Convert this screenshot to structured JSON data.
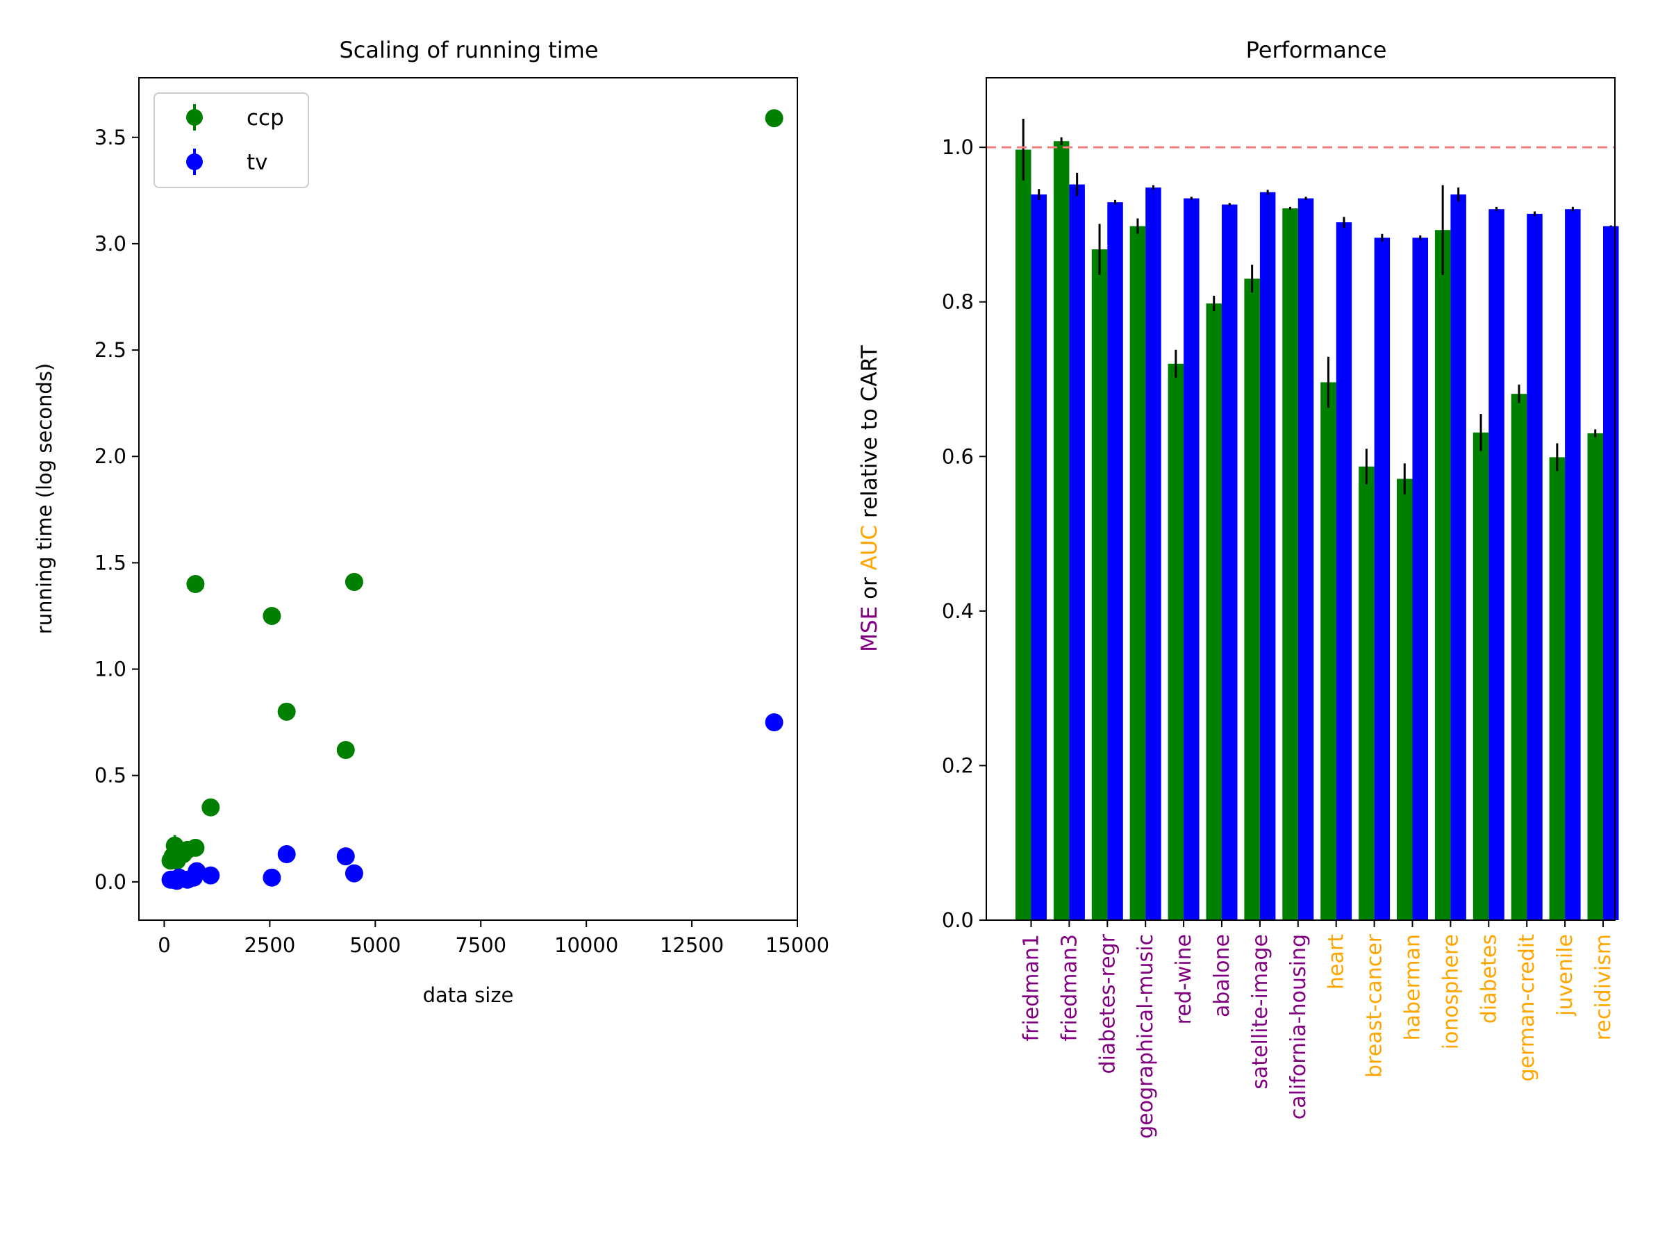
{
  "chart_data": [
    {
      "type": "scatter",
      "title": "Scaling of running time",
      "xlabel": "data size",
      "ylabel": "running time (log seconds)",
      "xlim": [
        -600,
        15000
      ],
      "ylim": [
        -0.18,
        3.78
      ],
      "xticks": [
        0,
        2500,
        5000,
        7500,
        10000,
        12500,
        15000
      ],
      "yticks": [
        0.0,
        0.5,
        1.0,
        1.5,
        2.0,
        2.5,
        3.0,
        3.5
      ],
      "xtick_labels": [
        "0",
        "2500",
        "5000",
        "7500",
        "10000",
        "12500",
        "15000"
      ],
      "ytick_labels": [
        "0.0",
        "0.5",
        "1.0",
        "1.5",
        "2.0",
        "2.5",
        "3.0",
        "3.5"
      ],
      "legend_position": "top-left",
      "series": [
        {
          "name": "ccp",
          "color": "#008000",
          "points": [
            {
              "x": 150,
              "y": 0.1,
              "err": 0.02
            },
            {
              "x": 200,
              "y": 0.12,
              "err": 0.02
            },
            {
              "x": 250,
              "y": 0.17,
              "err": 0.05
            },
            {
              "x": 300,
              "y": 0.1,
              "err": 0.02
            },
            {
              "x": 350,
              "y": 0.14,
              "err": 0.02
            },
            {
              "x": 450,
              "y": 0.13,
              "err": 0.02
            },
            {
              "x": 550,
              "y": 0.15,
              "err": 0.02
            },
            {
              "x": 740,
              "y": 0.16,
              "err": 0.01
            },
            {
              "x": 740,
              "y": 1.4,
              "err": 0.01
            },
            {
              "x": 1100,
              "y": 0.35,
              "err": 0.01
            },
            {
              "x": 2550,
              "y": 1.25,
              "err": 0.01
            },
            {
              "x": 2900,
              "y": 0.8,
              "err": 0.01
            },
            {
              "x": 4300,
              "y": 0.62,
              "err": 0.01
            },
            {
              "x": 4500,
              "y": 1.41,
              "err": 0.01
            },
            {
              "x": 14450,
              "y": 3.59,
              "err": 0.01
            }
          ]
        },
        {
          "name": "tv",
          "color": "#0000ff",
          "points": [
            {
              "x": 150,
              "y": 0.01,
              "err": 0.005
            },
            {
              "x": 200,
              "y": 0.01,
              "err": 0.005
            },
            {
              "x": 300,
              "y": 0.005,
              "err": 0.005
            },
            {
              "x": 350,
              "y": 0.02,
              "err": 0.005
            },
            {
              "x": 550,
              "y": 0.01,
              "err": 0.005
            },
            {
              "x": 700,
              "y": 0.02,
              "err": 0.005
            },
            {
              "x": 770,
              "y": 0.05,
              "err": 0.01
            },
            {
              "x": 1100,
              "y": 0.03,
              "err": 0.005
            },
            {
              "x": 2550,
              "y": 0.02,
              "err": 0.005
            },
            {
              "x": 2900,
              "y": 0.13,
              "err": 0.005
            },
            {
              "x": 4300,
              "y": 0.12,
              "err": 0.005
            },
            {
              "x": 4500,
              "y": 0.04,
              "err": 0.005
            },
            {
              "x": 14450,
              "y": 0.75,
              "err": 0.005
            }
          ]
        }
      ]
    },
    {
      "type": "bar",
      "title": "Performance",
      "ylabel_parts": [
        {
          "text": "MSE",
          "color": "#800080"
        },
        {
          "text": " or ",
          "color": "#000000"
        },
        {
          "text": "AUC",
          "color": "#ffa500"
        },
        {
          "text": "  relative to CART",
          "color": "#000000"
        }
      ],
      "ylim": [
        0,
        1.09
      ],
      "yticks": [
        0.0,
        0.2,
        0.4,
        0.6,
        0.8,
        1.0
      ],
      "ytick_labels": [
        "0.0",
        "0.2",
        "0.4",
        "0.6",
        "0.8",
        "1.0"
      ],
      "reference_line": {
        "y": 1.0,
        "color": "#f08080",
        "style": "dashed"
      },
      "categories": [
        "friedman1",
        "friedman3",
        "diabetes-regr",
        "geographical-music",
        "red-wine",
        "abalone",
        "satellite-image",
        "california-housing",
        "heart",
        "breast-cancer",
        "haberman",
        "ionosphere",
        "diabetes",
        "german-credit",
        "juvenile",
        "recidivism"
      ],
      "category_colors": [
        "#800080",
        "#800080",
        "#800080",
        "#800080",
        "#800080",
        "#800080",
        "#800080",
        "#800080",
        "#ffa500",
        "#ffa500",
        "#ffa500",
        "#ffa500",
        "#ffa500",
        "#ffa500",
        "#ffa500",
        "#ffa500"
      ],
      "series": [
        {
          "name": "ccp",
          "color": "#008000",
          "values": [
            0.997,
            1.008,
            0.868,
            0.898,
            0.72,
            0.798,
            0.83,
            0.921,
            0.696,
            0.587,
            0.571,
            0.893,
            0.631,
            0.681,
            0.599,
            0.63
          ],
          "errors": [
            0.04,
            0.005,
            0.033,
            0.01,
            0.018,
            0.01,
            0.018,
            0.002,
            0.033,
            0.023,
            0.02,
            0.058,
            0.024,
            0.012,
            0.018,
            0.005
          ]
        },
        {
          "name": "tv",
          "color": "#0000ff",
          "values": [
            0.939,
            0.952,
            0.929,
            0.948,
            0.934,
            0.926,
            0.942,
            0.934,
            0.903,
            0.883,
            0.883,
            0.939,
            0.92,
            0.914,
            0.92,
            0.898
          ],
          "errors": [
            0.007,
            0.015,
            0.003,
            0.003,
            0.002,
            0.002,
            0.003,
            0.002,
            0.007,
            0.005,
            0.003,
            0.009,
            0.003,
            0.003,
            0.003,
            0.001
          ]
        }
      ]
    }
  ]
}
